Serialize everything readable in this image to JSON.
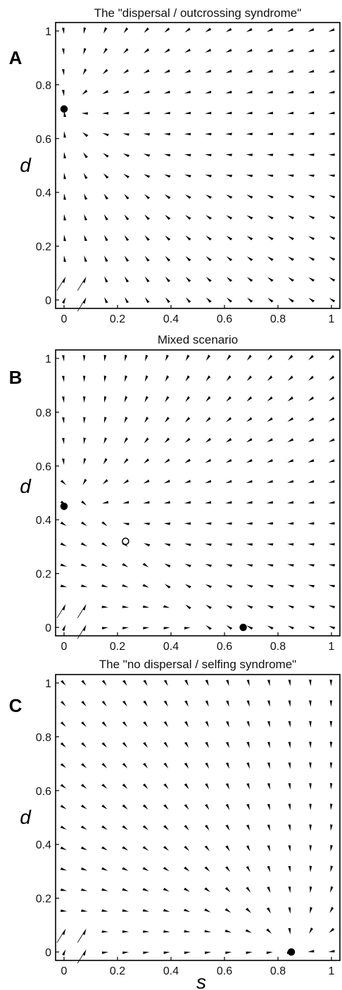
{
  "chart_data": [
    {
      "type": "quiver",
      "panel": "A",
      "title": "The \"dispersal / outcrossing syndrome\"",
      "xlabel": "",
      "ylabel": "d",
      "xlim": [
        0,
        1
      ],
      "ylim": [
        0,
        1
      ],
      "x_ticks": [
        "0",
        "0.2",
        "0.4",
        "0.6",
        "0.8",
        "1"
      ],
      "y_ticks": [
        "0",
        "0.2",
        "0.4",
        "0.6",
        "0.8",
        "1"
      ],
      "vector_field": "flow converging toward stable equilibrium at s=0, d≈0.71",
      "equilibria": [
        {
          "s": 0.0,
          "d": 0.71,
          "stable": true
        }
      ]
    },
    {
      "type": "quiver",
      "panel": "B",
      "title": "Mixed scenario",
      "xlabel": "",
      "ylabel": "d",
      "xlim": [
        0,
        1
      ],
      "ylim": [
        0,
        1
      ],
      "x_ticks": [
        "0",
        "0.2",
        "0.4",
        "0.6",
        "0.8",
        "1"
      ],
      "y_ticks": [
        "0",
        "0.2",
        "0.4",
        "0.6",
        "0.8",
        "1"
      ],
      "vector_field": "bistable: flow toward (0, 0.45) or (0.67, 0); saddle at (0.23, 0.32)",
      "equilibria": [
        {
          "s": 0.0,
          "d": 0.45,
          "stable": true
        },
        {
          "s": 0.23,
          "d": 0.32,
          "stable": false
        },
        {
          "s": 0.67,
          "d": 0.0,
          "stable": true
        }
      ]
    },
    {
      "type": "quiver",
      "panel": "C",
      "title": "The \"no dispersal / selfing syndrome\"",
      "xlabel": "s",
      "ylabel": "d",
      "xlim": [
        0,
        1
      ],
      "ylim": [
        0,
        1
      ],
      "x_ticks": [
        "0",
        "0.2",
        "0.4",
        "0.6",
        "0.8",
        "1"
      ],
      "y_ticks": [
        "0",
        "0.2",
        "0.4",
        "0.6",
        "0.8",
        "1"
      ],
      "vector_field": "flow converging toward stable equilibrium at s≈0.85, d=0",
      "equilibria": [
        {
          "s": 0.85,
          "d": 0.0,
          "stable": true
        }
      ]
    }
  ]
}
